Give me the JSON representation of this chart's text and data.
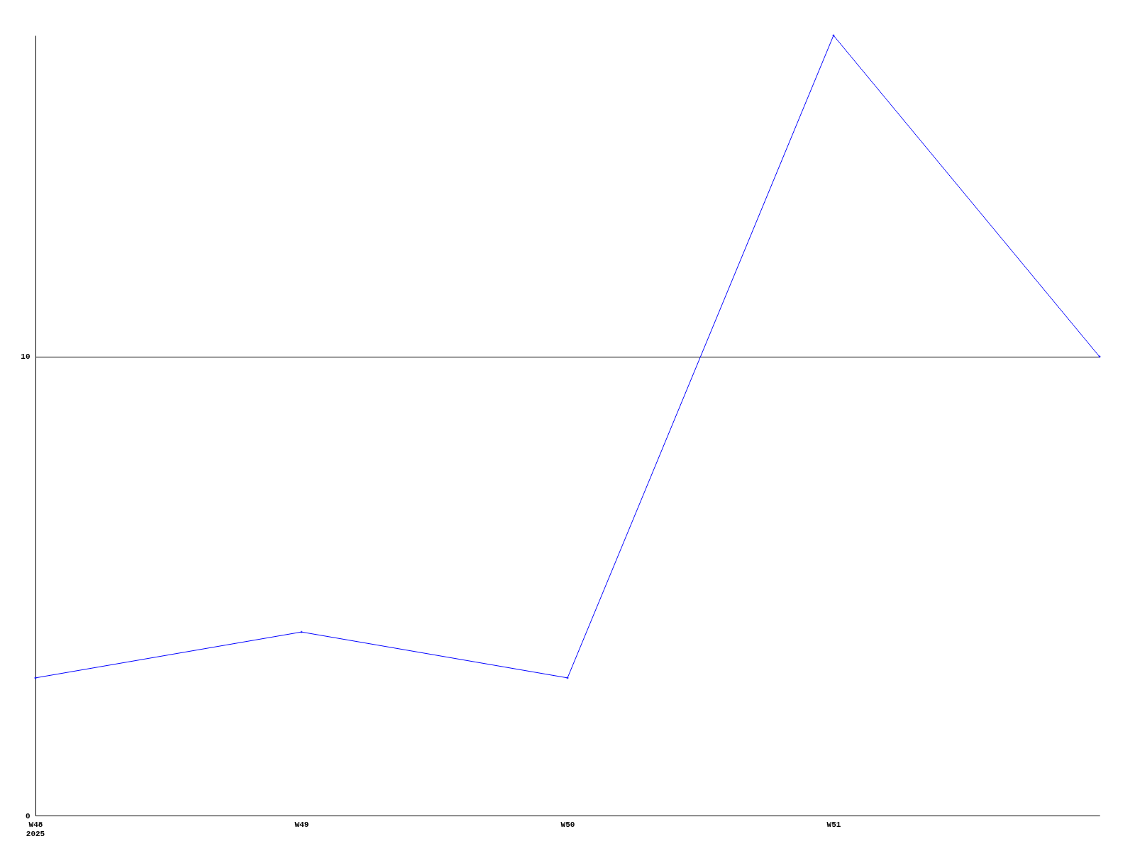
{
  "chart_data": {
    "type": "line",
    "categories": [
      "W48",
      "W49",
      "W50",
      "W51",
      null
    ],
    "series": [
      {
        "color": "#0000ff",
        "values": [
          3,
          4,
          3,
          17,
          10
        ]
      }
    ],
    "ylim": [
      0,
      17
    ],
    "yticks": [
      0,
      10
    ],
    "grid": "y",
    "marker": "diamond",
    "annotations": [
      "2025"
    ]
  }
}
